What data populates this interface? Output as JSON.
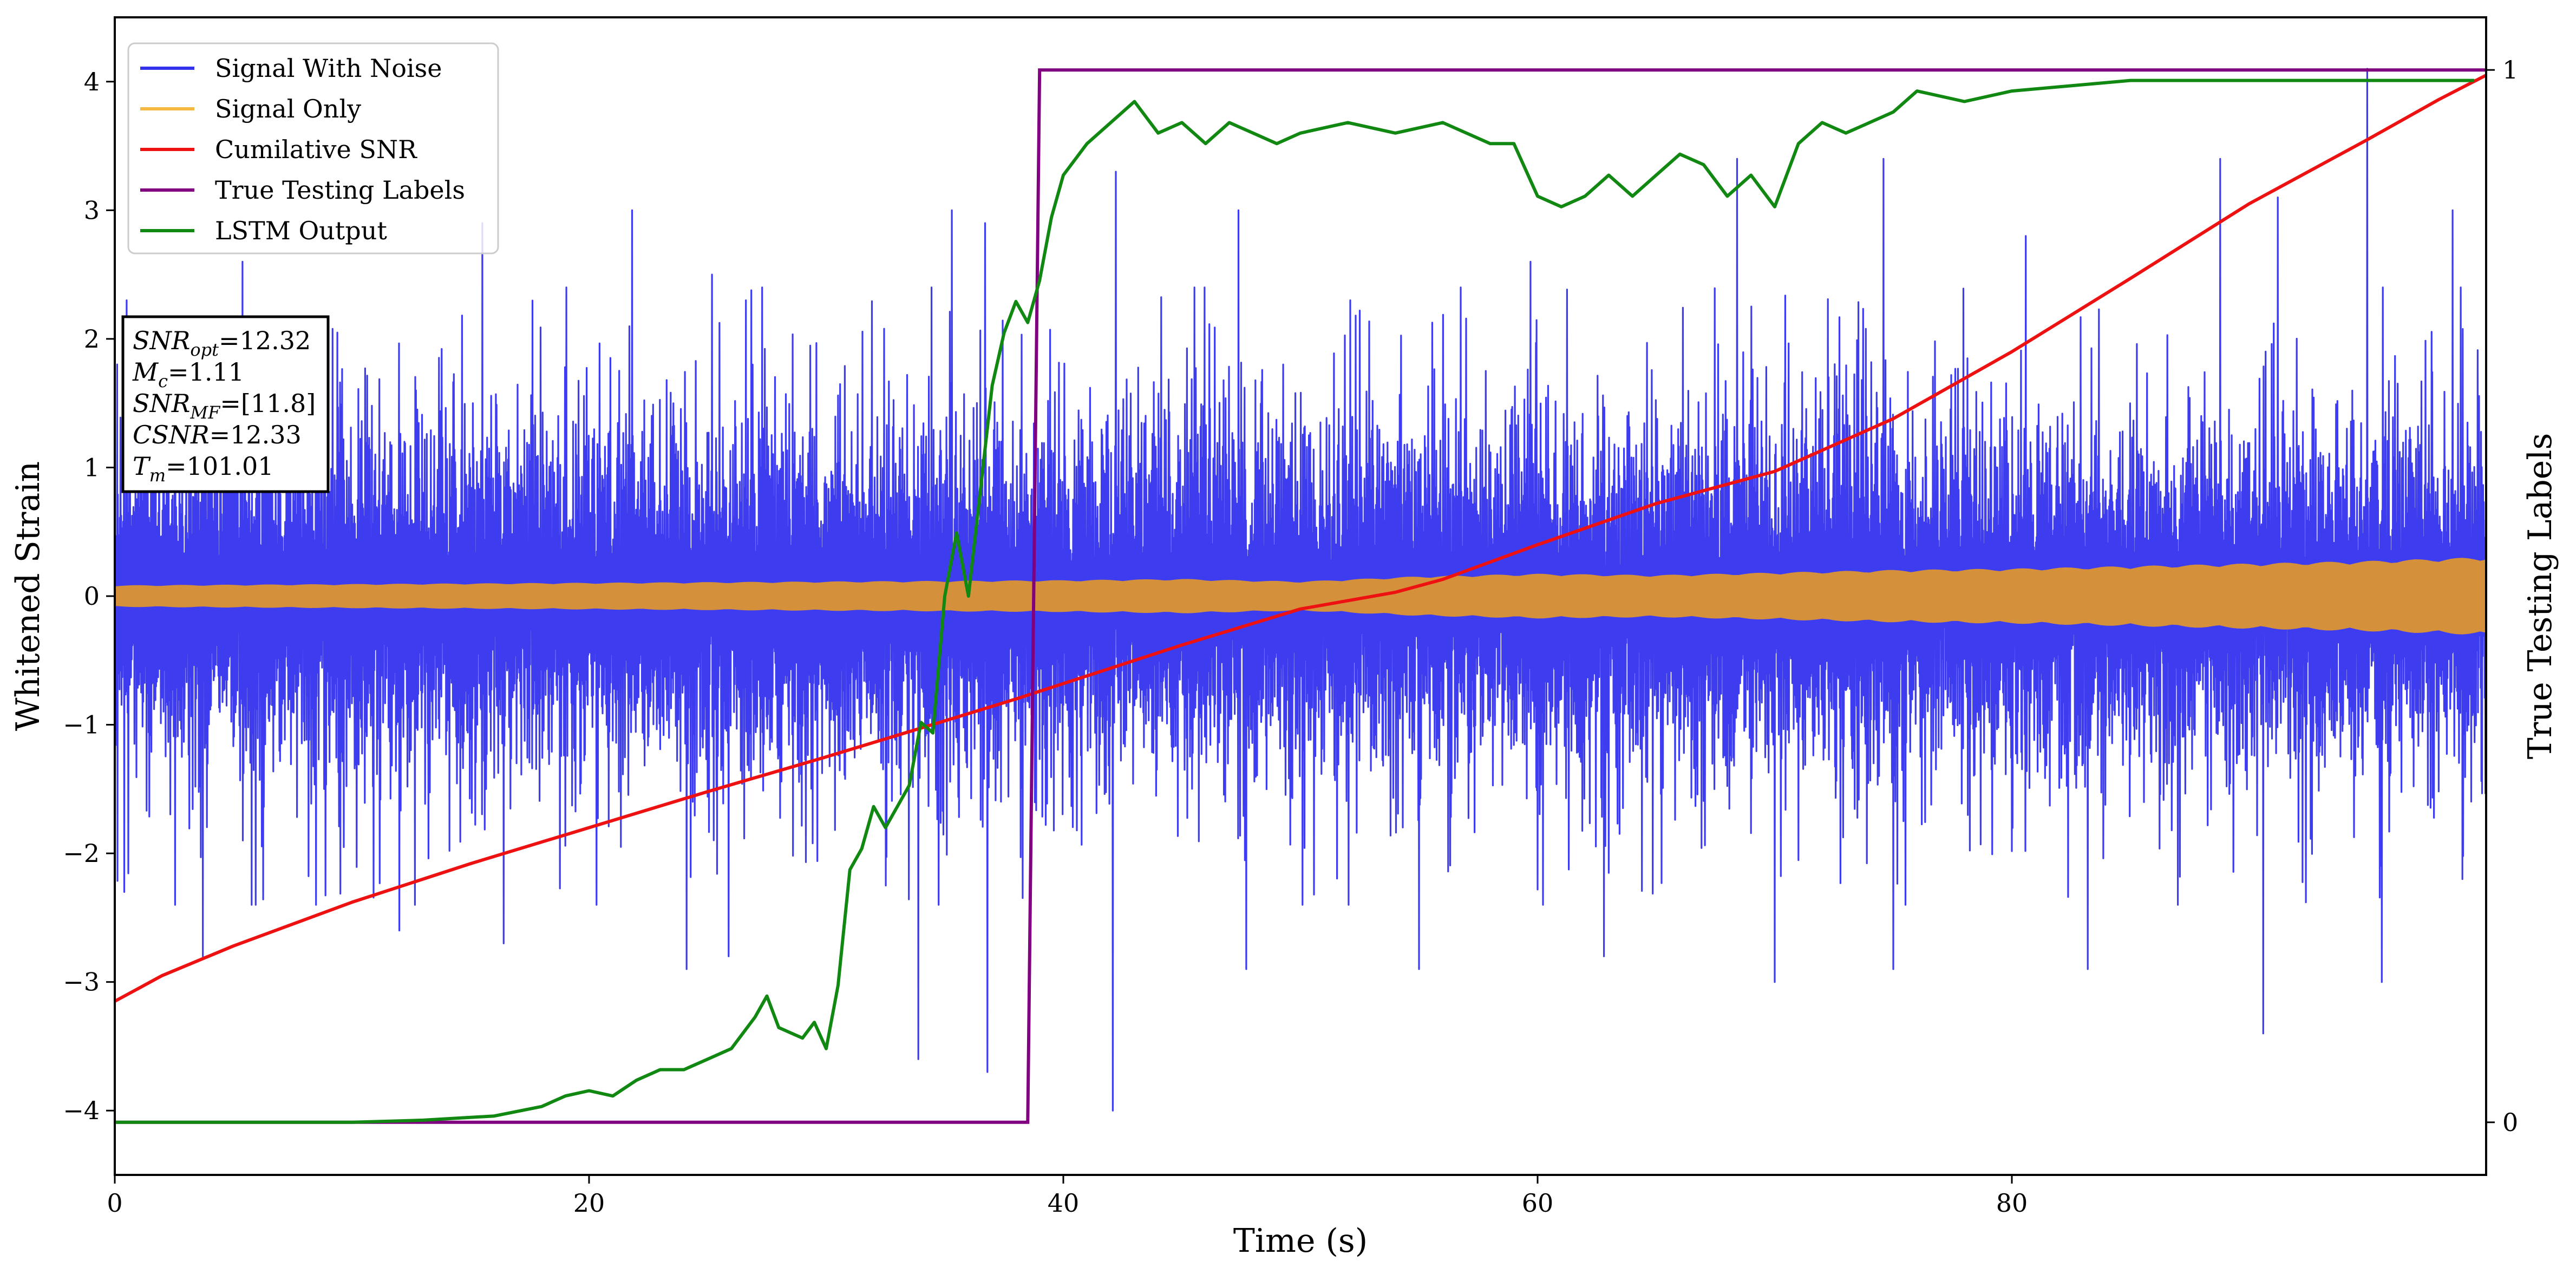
{
  "chart_data": {
    "type": "line",
    "title": "",
    "xlabel": "Time (s)",
    "ylabel": "Whitened Strain",
    "y2label": "True Testing Labels",
    "xlim": [
      0,
      100
    ],
    "ylim": [
      -4.5,
      4.5
    ],
    "y2lim": [
      -0.05,
      1.05
    ],
    "x_ticks": [
      0,
      20,
      40,
      60,
      80
    ],
    "y_ticks": [
      -4,
      -3,
      -2,
      -1,
      0,
      1,
      2,
      3,
      4
    ],
    "y2_ticks": [
      0,
      1
    ],
    "grid": false,
    "legend_position": "upper-left",
    "legend": [
      {
        "label": "Signal With Noise",
        "color": "#3333ee"
      },
      {
        "label": "Signal Only",
        "color": "#f5b942"
      },
      {
        "label": "Cumilative SNR",
        "color": "#ee1111"
      },
      {
        "label": "True Testing Labels",
        "color": "#800080"
      },
      {
        "label": "LSTM Output",
        "color": "#118811"
      }
    ],
    "annotation_lines": [
      {
        "base": "SNR",
        "sub": "opt",
        "value": "=12.32"
      },
      {
        "base": "M",
        "sub": "c",
        "value": "=1.11"
      },
      {
        "base": "SNR",
        "sub": "MF",
        "value": "=[11.8]"
      },
      {
        "base": "CSNR",
        "sub": "",
        "value": "=12.33"
      },
      {
        "base": "T",
        "sub": "m",
        "value": "=101.01"
      }
    ],
    "series": [
      {
        "name": "Signal With Noise",
        "color": "#3333ee",
        "axis": "left",
        "kind": "noise",
        "band_sigma": 0.6,
        "spike_peaks": [
          {
            "x": 0.5,
            "y": 2.3
          },
          {
            "x": 5.4,
            "y": 2.6
          },
          {
            "x": 15.5,
            "y": 2.9
          },
          {
            "x": 21.8,
            "y": 3.0
          },
          {
            "x": 25.2,
            "y": 2.5
          },
          {
            "x": 26.6,
            "y": 2.3
          },
          {
            "x": 35.3,
            "y": 3.0
          },
          {
            "x": 36.7,
            "y": 2.9
          },
          {
            "x": 42.2,
            "y": 3.3
          },
          {
            "x": 47.4,
            "y": 3.0
          },
          {
            "x": 52.1,
            "y": 2.3
          },
          {
            "x": 59.7,
            "y": 2.6
          },
          {
            "x": 68.4,
            "y": 3.4
          },
          {
            "x": 74.6,
            "y": 3.4
          },
          {
            "x": 80.6,
            "y": 2.8
          },
          {
            "x": 88.8,
            "y": 3.4
          },
          {
            "x": 91.2,
            "y": 3.1
          },
          {
            "x": 95.0,
            "y": 4.1
          },
          {
            "x": 98.6,
            "y": 3.0
          }
        ],
        "spike_troughs": [
          {
            "x": 0.4,
            "y": -2.3
          },
          {
            "x": 3.7,
            "y": -2.8
          },
          {
            "x": 12.0,
            "y": -2.6
          },
          {
            "x": 16.4,
            "y": -2.7
          },
          {
            "x": 24.1,
            "y": -2.9
          },
          {
            "x": 25.9,
            "y": -2.8
          },
          {
            "x": 33.9,
            "y": -3.6
          },
          {
            "x": 36.8,
            "y": -3.7
          },
          {
            "x": 42.1,
            "y": -4.0
          },
          {
            "x": 47.7,
            "y": -2.9
          },
          {
            "x": 55.0,
            "y": -2.9
          },
          {
            "x": 62.8,
            "y": -2.8
          },
          {
            "x": 70.0,
            "y": -3.0
          },
          {
            "x": 75.0,
            "y": -2.9
          },
          {
            "x": 83.2,
            "y": -2.9
          },
          {
            "x": 90.6,
            "y": -3.4
          },
          {
            "x": 95.6,
            "y": -3.0
          },
          {
            "x": 99.0,
            "y": -2.2
          }
        ]
      },
      {
        "name": "Signal Only",
        "color": "#d4903a",
        "axis": "left",
        "kind": "envelope",
        "x": [
          0,
          10,
          20,
          30,
          40,
          45,
          50,
          55,
          60,
          65,
          70,
          75,
          80,
          85,
          90,
          95,
          100
        ],
        "amplitude": [
          0.08,
          0.09,
          0.1,
          0.11,
          0.12,
          0.13,
          0.11,
          0.15,
          0.17,
          0.16,
          0.18,
          0.2,
          0.21,
          0.23,
          0.25,
          0.27,
          0.3
        ]
      },
      {
        "name": "Cumilative SNR",
        "color": "#ee1111",
        "axis": "left",
        "x": [
          0,
          2,
          5,
          10,
          15,
          20,
          25,
          30,
          35,
          38,
          40,
          45,
          50,
          54,
          56,
          60,
          65,
          70,
          75,
          80,
          85,
          90,
          95,
          98,
          100
        ],
        "y": [
          -3.15,
          -2.95,
          -2.72,
          -2.38,
          -2.08,
          -1.8,
          -1.52,
          -1.25,
          -0.97,
          -0.8,
          -0.68,
          -0.38,
          -0.1,
          0.03,
          0.13,
          0.4,
          0.72,
          0.97,
          1.38,
          1.9,
          2.47,
          3.05,
          3.55,
          3.86,
          4.05
        ]
      },
      {
        "name": "True Testing Labels",
        "color": "#800080",
        "axis": "right",
        "x": [
          0,
          38.5,
          39.0,
          100
        ],
        "y": [
          0,
          0,
          1,
          1
        ]
      },
      {
        "name": "LSTM Output",
        "color": "#118811",
        "axis": "right",
        "x": [
          0,
          5,
          10,
          13,
          16,
          18,
          19,
          20,
          21,
          22,
          23,
          24,
          25,
          26,
          27,
          27.5,
          28,
          29,
          29.5,
          30,
          30.5,
          31,
          31.5,
          32,
          32.5,
          33,
          33.5,
          34,
          34.5,
          35,
          35.5,
          36,
          36.5,
          37,
          37.5,
          38,
          38.5,
          39,
          39.5,
          40,
          41,
          42,
          43,
          44,
          45,
          46,
          47,
          48,
          49,
          50,
          52,
          54,
          56,
          58,
          59,
          60,
          61,
          62,
          63,
          64,
          65,
          66,
          67,
          68,
          69,
          70,
          71,
          72,
          73,
          74,
          75,
          76,
          78,
          80,
          85,
          90,
          95,
          99.5
        ],
        "y": [
          0,
          0,
          0,
          0.002,
          0.006,
          0.015,
          0.025,
          0.03,
          0.025,
          0.04,
          0.05,
          0.05,
          0.06,
          0.07,
          0.1,
          0.12,
          0.09,
          0.08,
          0.095,
          0.07,
          0.13,
          0.24,
          0.26,
          0.3,
          0.28,
          0.3,
          0.32,
          0.38,
          0.37,
          0.5,
          0.56,
          0.5,
          0.6,
          0.7,
          0.75,
          0.78,
          0.76,
          0.8,
          0.86,
          0.9,
          0.93,
          0.95,
          0.97,
          0.94,
          0.95,
          0.93,
          0.95,
          0.94,
          0.93,
          0.94,
          0.95,
          0.94,
          0.95,
          0.93,
          0.93,
          0.88,
          0.87,
          0.88,
          0.9,
          0.88,
          0.9,
          0.92,
          0.91,
          0.88,
          0.9,
          0.87,
          0.93,
          0.95,
          0.94,
          0.95,
          0.96,
          0.98,
          0.97,
          0.98,
          0.99,
          0.99,
          0.99,
          0.99
        ]
      }
    ]
  }
}
